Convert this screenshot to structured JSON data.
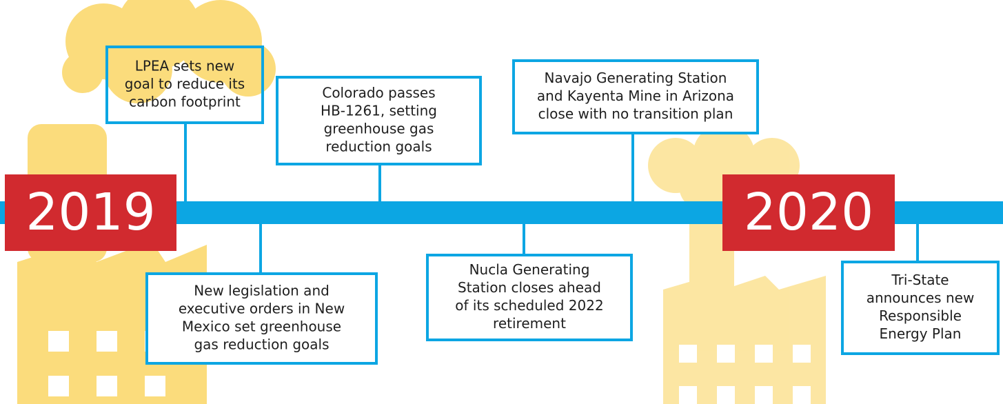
{
  "years": [
    "2019",
    "2020"
  ],
  "events": [
    {
      "lines": [
        "LPEA sets new",
        "goal to reduce its",
        "carbon footprint"
      ]
    },
    {
      "lines": [
        "Colorado passes",
        "HB-1261, setting",
        "greenhouse gas",
        "reduction goals"
      ]
    },
    {
      "lines": [
        "Navajo Generating Station",
        "and Kayenta Mine in Arizona",
        "close with no transition plan"
      ]
    },
    {
      "lines": [
        "New legislation and",
        "executive orders in New",
        "Mexico set greenhouse",
        "gas reduction goals"
      ]
    },
    {
      "lines": [
        "Nucla Generating",
        "Station closes ahead",
        "of its scheduled 2022",
        "retirement"
      ]
    },
    {
      "lines": [
        "Tri-State",
        "announces new",
        "Responsible",
        "Energy Plan"
      ]
    }
  ]
}
